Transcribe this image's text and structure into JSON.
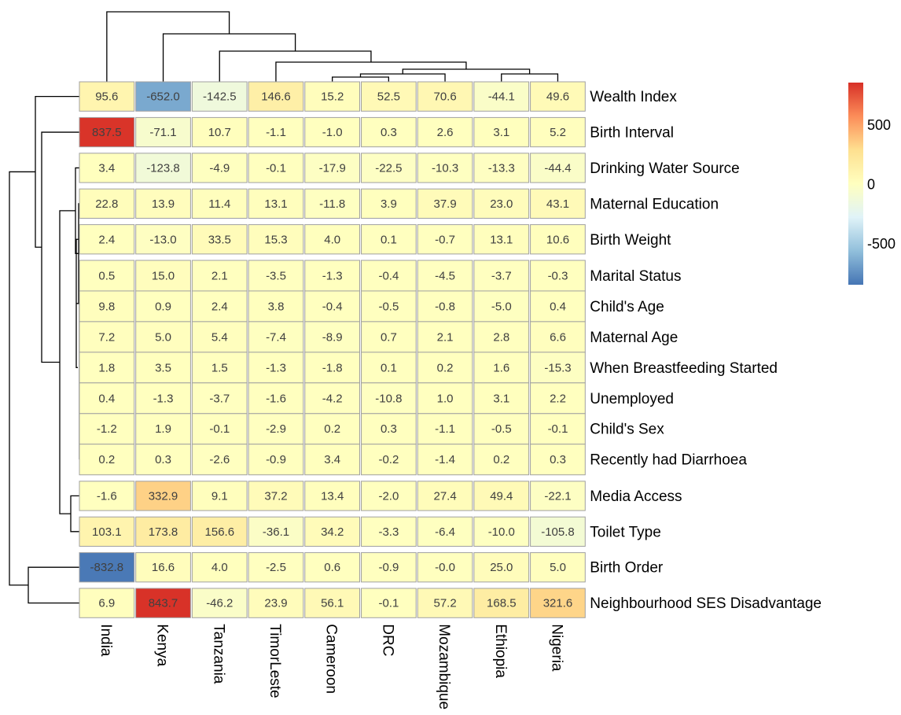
{
  "chart_data": {
    "type": "heatmap",
    "columns": [
      "India",
      "Kenya",
      "Tanzania",
      "TimorLeste",
      "Cameroon",
      "DRC",
      "Mozambique",
      "Ethiopia",
      "Nigeria"
    ],
    "rows": [
      "Wealth Index",
      "Birth Interval",
      "Drinking Water Source",
      "Maternal Education",
      "Birth Weight",
      "Marital Status",
      "Child's Age",
      "Maternal Age",
      "When Breastfeeding Started",
      "Unemployed",
      "Child's Sex",
      "Recently had Diarrhoea",
      "Media Access",
      "Toilet Type",
      "Birth Order",
      "Neighbourhood SES Disadvantage"
    ],
    "values": [
      [
        95.6,
        -652.0,
        -142.5,
        146.6,
        15.2,
        52.5,
        70.6,
        -44.1,
        49.6
      ],
      [
        837.5,
        -71.1,
        10.7,
        -1.1,
        -1.0,
        0.3,
        2.6,
        3.1,
        5.2
      ],
      [
        3.4,
        -123.8,
        -4.9,
        -0.1,
        -17.9,
        -22.5,
        -10.3,
        -13.3,
        -44.4
      ],
      [
        22.8,
        13.9,
        11.4,
        13.1,
        -11.8,
        3.9,
        37.9,
        23.0,
        43.1
      ],
      [
        2.4,
        -13.0,
        33.5,
        15.3,
        4.0,
        0.1,
        -0.7,
        13.1,
        10.6
      ],
      [
        0.5,
        15.0,
        2.1,
        -3.5,
        -1.3,
        -0.4,
        -4.5,
        -3.7,
        -0.3
      ],
      [
        9.8,
        0.9,
        2.4,
        3.8,
        -0.4,
        -0.5,
        -0.8,
        -5.0,
        0.4
      ],
      [
        7.2,
        5.0,
        5.4,
        -7.4,
        -8.9,
        0.7,
        2.1,
        2.8,
        6.6
      ],
      [
        1.8,
        3.5,
        1.5,
        -1.3,
        -1.8,
        0.1,
        0.2,
        1.6,
        -15.3
      ],
      [
        0.4,
        -1.3,
        -3.7,
        -1.6,
        -4.2,
        -10.8,
        1.0,
        3.1,
        2.2
      ],
      [
        -1.2,
        1.9,
        -0.1,
        -2.9,
        0.2,
        0.3,
        -1.1,
        -0.5,
        -0.1
      ],
      [
        0.2,
        0.3,
        -2.6,
        -0.9,
        3.4,
        -0.2,
        -1.4,
        0.2,
        0.3
      ],
      [
        -1.6,
        332.9,
        9.1,
        37.2,
        13.4,
        -2.0,
        27.4,
        49.4,
        -22.1
      ],
      [
        103.1,
        173.8,
        156.6,
        -36.1,
        34.2,
        -3.3,
        -6.4,
        -10.0,
        -105.8
      ],
      [
        -832.8,
        16.6,
        4.0,
        -2.5,
        0.6,
        -0.9,
        -0.0,
        25.0,
        5.0
      ],
      [
        6.9,
        843.7,
        -46.2,
        23.9,
        56.1,
        -0.1,
        57.2,
        168.5,
        321.6
      ]
    ],
    "value_labels": [
      [
        "95.6",
        "-652.0",
        "-142.5",
        "146.6",
        "15.2",
        "52.5",
        "70.6",
        "-44.1",
        "49.6"
      ],
      [
        "837.5",
        "-71.1",
        "10.7",
        "-1.1",
        "-1.0",
        "0.3",
        "2.6",
        "3.1",
        "5.2"
      ],
      [
        "3.4",
        "-123.8",
        "-4.9",
        "-0.1",
        "-17.9",
        "-22.5",
        "-10.3",
        "-13.3",
        "-44.4"
      ],
      [
        "22.8",
        "13.9",
        "11.4",
        "13.1",
        "-11.8",
        "3.9",
        "37.9",
        "23.0",
        "43.1"
      ],
      [
        "2.4",
        "-13.0",
        "33.5",
        "15.3",
        "4.0",
        "0.1",
        "-0.7",
        "13.1",
        "10.6"
      ],
      [
        "0.5",
        "15.0",
        "2.1",
        "-3.5",
        "-1.3",
        "-0.4",
        "-4.5",
        "-3.7",
        "-0.3"
      ],
      [
        "9.8",
        "0.9",
        "2.4",
        "3.8",
        "-0.4",
        "-0.5",
        "-0.8",
        "-5.0",
        "0.4"
      ],
      [
        "7.2",
        "5.0",
        "5.4",
        "-7.4",
        "-8.9",
        "0.7",
        "2.1",
        "2.8",
        "6.6"
      ],
      [
        "1.8",
        "3.5",
        "1.5",
        "-1.3",
        "-1.8",
        "0.1",
        "0.2",
        "1.6",
        "-15.3"
      ],
      [
        "0.4",
        "-1.3",
        "-3.7",
        "-1.6",
        "-4.2",
        "-10.8",
        "1.0",
        "3.1",
        "2.2"
      ],
      [
        "-1.2",
        "1.9",
        "-0.1",
        "-2.9",
        "0.2",
        "0.3",
        "-1.1",
        "-0.5",
        "-0.1"
      ],
      [
        "0.2",
        "0.3",
        "-2.6",
        "-0.9",
        "3.4",
        "-0.2",
        "-1.4",
        "0.2",
        "0.3"
      ],
      [
        "-1.6",
        "332.9",
        "9.1",
        "37.2",
        "13.4",
        "-2.0",
        "27.4",
        "49.4",
        "-22.1"
      ],
      [
        "103.1",
        "173.8",
        "156.6",
        "-36.1",
        "34.2",
        "-3.3",
        "-6.4",
        "-10.0",
        "-105.8"
      ],
      [
        "-832.8",
        "16.6",
        "4.0",
        "-2.5",
        "0.6",
        "-0.9",
        "-0.0",
        "25.0",
        "5.0"
      ],
      [
        "6.9",
        "843.7",
        "-46.2",
        "23.9",
        "56.1",
        "-0.1",
        "57.2",
        "168.5",
        "321.6"
      ]
    ],
    "row_groups": [
      [
        0
      ],
      [
        1
      ],
      [
        2
      ],
      [
        3
      ],
      [
        4
      ],
      [
        5,
        6,
        7,
        8,
        9,
        10,
        11
      ],
      [
        12
      ],
      [
        13
      ],
      [
        14
      ],
      [
        15
      ]
    ],
    "color_scale": {
      "min": -850,
      "max": 850,
      "low_color": "#4575b4",
      "mid_color": "#ffffbf",
      "high_color": "#d73027",
      "stops": [
        "#4575b4",
        "#91bfdb",
        "#e0f3f8",
        "#ffffbf",
        "#fee090",
        "#fc8d59",
        "#d73027"
      ]
    },
    "legend": {
      "position": "right",
      "ticks": [
        "500",
        "0",
        "-500"
      ],
      "tick_values": [
        500,
        0,
        -500
      ]
    },
    "row_dendrogram": true,
    "column_dendrogram": true
  }
}
